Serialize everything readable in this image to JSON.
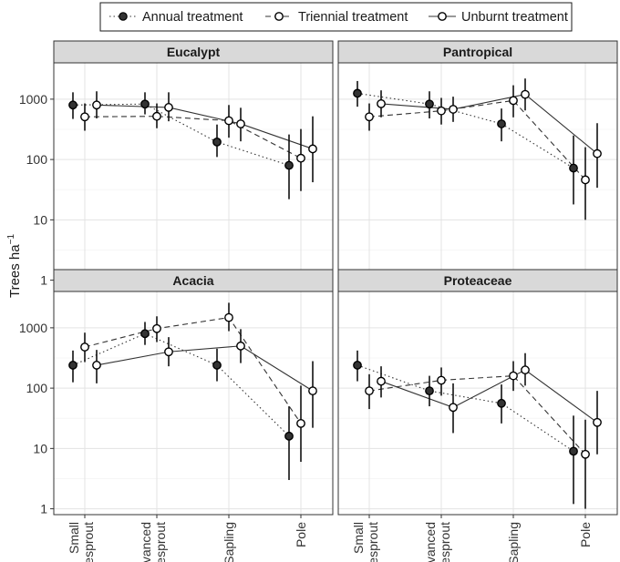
{
  "chart_data": {
    "type": "scatter",
    "y_label": "Trees ha",
    "y_label_sup": "−1",
    "y_scale": "log10",
    "y_ticks": [
      1,
      10,
      100,
      1000
    ],
    "ylim": [
      0.8,
      4000
    ],
    "categories": [
      {
        "line1": "Small",
        "line2": "resprout"
      },
      {
        "line1": "Advanced",
        "line2": "resprout"
      },
      {
        "line1": "Sapling",
        "line2": ""
      },
      {
        "line1": "Pole",
        "line2": ""
      }
    ],
    "legend": [
      {
        "name": "Annual treatment",
        "fill": "#333333",
        "dash": "dotted"
      },
      {
        "name": "Triennial treatment",
        "fill": "#ffffff",
        "dash": "dashed"
      },
      {
        "name": "Unburnt treatment",
        "fill": "#ffffff",
        "dash": "solid"
      }
    ],
    "panels": [
      {
        "title": "Eucalypt",
        "series": [
          {
            "treatment": "Annual treatment",
            "values": [
              800,
              830,
              195,
              80
            ],
            "lower": [
              470,
              560,
              110,
              22
            ],
            "upper": [
              1300,
              1300,
              380,
              260
            ]
          },
          {
            "treatment": "Triennial treatment",
            "values": [
              510,
              520,
              440,
              105
            ],
            "lower": [
              300,
              330,
              230,
              30
            ],
            "upper": [
              850,
              850,
              800,
              320
            ]
          },
          {
            "treatment": "Unburnt treatment",
            "values": [
              800,
              730,
              390,
              150
            ],
            "lower": [
              480,
              430,
              200,
              42
            ],
            "upper": [
              1350,
              1300,
              720,
              520
            ]
          }
        ]
      },
      {
        "title": "Pantropical",
        "series": [
          {
            "treatment": "Annual treatment",
            "values": [
              1250,
              830,
              390,
              72
            ],
            "lower": [
              750,
              480,
              200,
              18
            ],
            "upper": [
              2000,
              1350,
              700,
              250
            ]
          },
          {
            "treatment": "Triennial treatment",
            "values": [
              510,
              640,
              950,
              46
            ],
            "lower": [
              300,
              380,
              500,
              10
            ],
            "upper": [
              850,
              1050,
              1700,
              160
            ]
          },
          {
            "treatment": "Unburnt treatment",
            "values": [
              840,
              680,
              1200,
              125
            ],
            "lower": [
              500,
              420,
              650,
              34
            ],
            "upper": [
              1400,
              1100,
              2200,
              400
            ]
          }
        ]
      },
      {
        "title": "Acacia",
        "series": [
          {
            "treatment": "Annual treatment",
            "values": [
              240,
              800,
              240,
              16
            ],
            "lower": [
              125,
              520,
              130,
              3
            ],
            "upper": [
              420,
              1250,
              450,
              50
            ]
          },
          {
            "treatment": "Triennial treatment",
            "values": [
              480,
              970,
              1480,
              26
            ],
            "lower": [
              270,
              580,
              880,
              6
            ],
            "upper": [
              830,
              1550,
              2600,
              110
            ]
          },
          {
            "treatment": "Unburnt treatment",
            "values": [
              240,
              400,
              500,
              90
            ],
            "lower": [
              120,
              230,
              260,
              22
            ],
            "upper": [
              430,
              700,
              950,
              280
            ]
          }
        ]
      },
      {
        "title": "Proteaceae",
        "series": [
          {
            "treatment": "Annual treatment",
            "values": [
              240,
              90,
              56,
              9
            ],
            "lower": [
              130,
              50,
              26,
              1.2
            ],
            "upper": [
              420,
              160,
              115,
              35
            ]
          },
          {
            "treatment": "Triennial treatment",
            "values": [
              90,
              135,
              160,
              8
            ],
            "lower": [
              45,
              75,
              90,
              1
            ],
            "upper": [
              170,
              220,
              280,
              30
            ]
          },
          {
            "treatment": "Unburnt treatment",
            "values": [
              130,
              48,
              200,
              27
            ],
            "lower": [
              70,
              18,
              110,
              8
            ],
            "upper": [
              230,
              120,
              380,
              90
            ]
          }
        ]
      }
    ]
  }
}
